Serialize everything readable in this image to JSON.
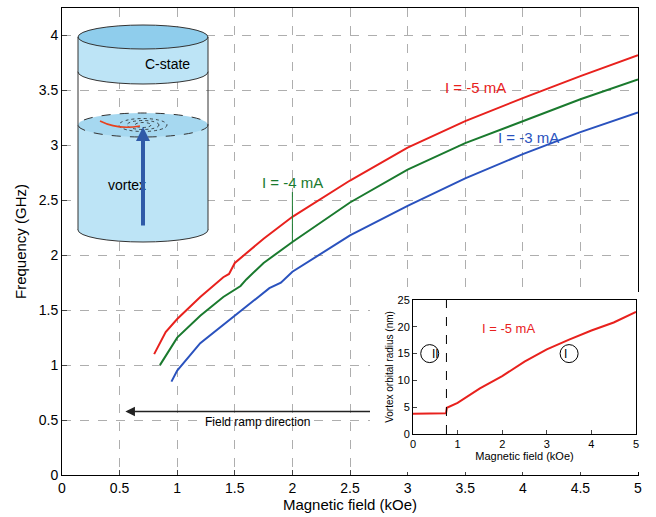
{
  "chart_data": [
    {
      "type": "line",
      "x_label": "Magnetic field (kOe)",
      "y_label": "Frequency (GHz)",
      "xlim": [
        0,
        5
      ],
      "ylim": [
        0,
        4.25
      ],
      "xticks": [
        0,
        0.5,
        1,
        1.5,
        2,
        2.5,
        3,
        3.5,
        4,
        4.5,
        5
      ],
      "yticks": [
        0,
        0.5,
        1,
        1.5,
        2,
        2.5,
        3,
        3.5,
        4
      ],
      "grid": true,
      "annotations": [
        "Field ramp direction",
        "C-state",
        "vortex"
      ],
      "series": [
        {
          "name": "I = -5 mA",
          "color": "#e8211d",
          "x": [
            0.8,
            0.9,
            1.0,
            1.2,
            1.4,
            1.45,
            1.5,
            1.75,
            2.0,
            2.5,
            3.0,
            3.5,
            4.0,
            4.5,
            5.0
          ],
          "values": [
            1.1,
            1.3,
            1.42,
            1.62,
            1.8,
            1.83,
            1.93,
            2.15,
            2.35,
            2.68,
            2.98,
            3.22,
            3.43,
            3.63,
            3.82
          ]
        },
        {
          "name": "I = -4 mA",
          "color": "#1a7a2e",
          "x": [
            0.85,
            1.0,
            1.2,
            1.4,
            1.55,
            1.6,
            1.75,
            2.0,
            2.5,
            3.0,
            3.5,
            4.0,
            4.5,
            5.0
          ],
          "values": [
            1.0,
            1.25,
            1.45,
            1.62,
            1.72,
            1.78,
            1.93,
            2.12,
            2.48,
            2.78,
            3.02,
            3.22,
            3.42,
            3.6
          ]
        },
        {
          "name": "I = -3 mA",
          "color": "#2a52be",
          "x": [
            0.95,
            1.0,
            1.2,
            1.5,
            1.8,
            1.9,
            2.0,
            2.5,
            3.0,
            3.5,
            4.0,
            4.5,
            5.0
          ],
          "values": [
            0.85,
            0.95,
            1.2,
            1.45,
            1.7,
            1.75,
            1.85,
            2.18,
            2.45,
            2.7,
            2.92,
            3.12,
            3.3
          ]
        }
      ]
    },
    {
      "type": "line",
      "x_label": "Magnetic field (kOe)",
      "y_label": "Vortex orbital radius (nm)",
      "xlim": [
        0,
        5
      ],
      "ylim": [
        0,
        25
      ],
      "xticks": [
        0,
        1,
        2,
        3,
        4,
        5
      ],
      "yticks": [
        0,
        5,
        10,
        15,
        20,
        25
      ],
      "grid": false,
      "transition_field": 0.75,
      "regions": [
        "II",
        "I"
      ],
      "series": [
        {
          "name": "I = -5 mA",
          "color": "#e8211d",
          "x": [
            0,
            0.25,
            0.5,
            0.74,
            0.76,
            1.0,
            1.5,
            2.0,
            2.5,
            3.0,
            3.5,
            4.0,
            4.5,
            5.0
          ],
          "values": [
            3.8,
            3.8,
            3.8,
            3.85,
            4.9,
            5.8,
            8.5,
            10.8,
            13.5,
            15.8,
            17.6,
            19.3,
            20.8,
            22.8
          ]
        }
      ]
    }
  ]
}
